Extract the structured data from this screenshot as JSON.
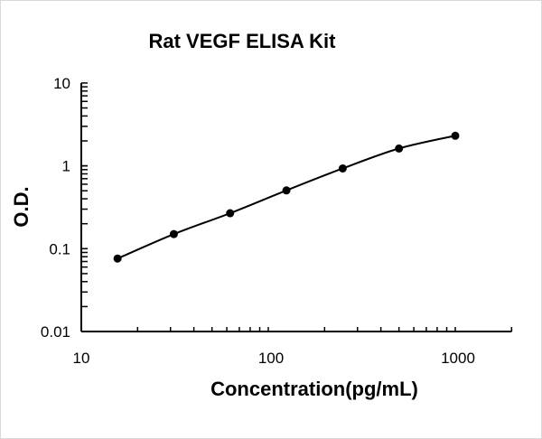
{
  "chart_data": {
    "type": "line",
    "title": "Rat VEGF ELISA Kit",
    "xlabel": "Concentration(pg/mL)",
    "ylabel": "O.D.",
    "xscale": "log",
    "yscale": "log",
    "xlim": [
      10,
      2000
    ],
    "ylim": [
      0.01,
      10
    ],
    "xticks": [
      10,
      100,
      1000
    ],
    "xtick_labels": [
      "10",
      "100",
      "1000"
    ],
    "yticks": [
      0.01,
      0.1,
      1,
      10
    ],
    "ytick_labels": [
      "0.01",
      "0.1",
      "1",
      "10"
    ],
    "grid": false,
    "legend": "none",
    "line_color": "#000000",
    "marker": "circle",
    "x": [
      15.625,
      31.25,
      62.5,
      125,
      250,
      500,
      1000
    ],
    "y": [
      0.076,
      0.15,
      0.268,
      0.505,
      0.93,
      1.62,
      2.31
    ]
  }
}
